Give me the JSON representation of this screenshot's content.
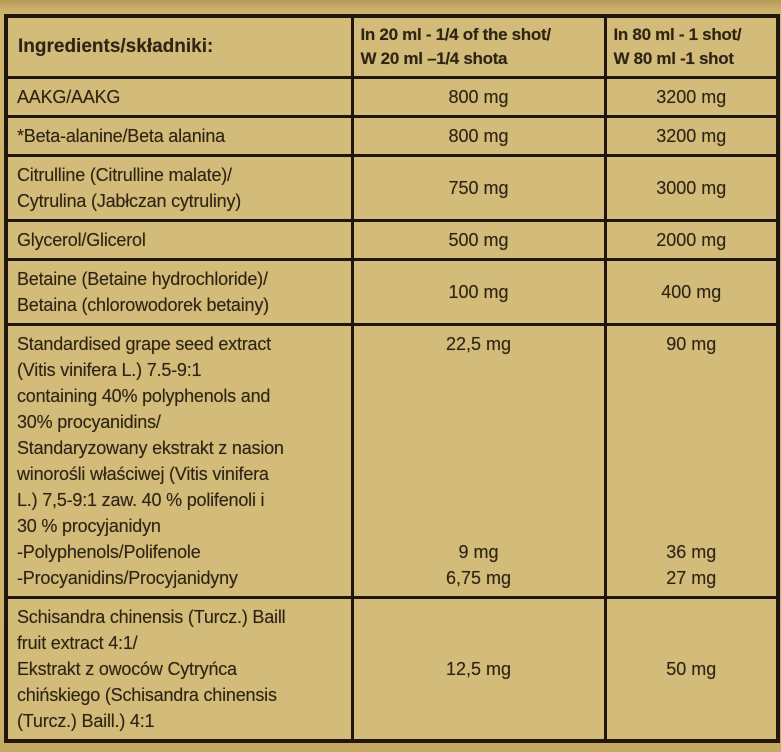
{
  "colors": {
    "page_bg": "#c9ae69",
    "cell_bg": "#d3bc7a",
    "border": "#20160b",
    "text": "#2f2414"
  },
  "table": {
    "header": {
      "ingredients": "Ingredients/składniki:",
      "col20_lines": [
        "In 20 ml - 1/4 of the shot/",
        "W 20 ml –1/4 shota"
      ],
      "col80_lines": [
        "In 80 ml - 1 shot/",
        "W 80 ml -1 shot"
      ]
    },
    "rows": [
      {
        "ingredient_lines": [
          "AAKG/AAKG"
        ],
        "v20": {
          "main": "800 mg",
          "sub": []
        },
        "v80": {
          "main": "3200 mg",
          "sub": []
        }
      },
      {
        "ingredient_lines": [
          "*Beta-alanine/Beta alanina"
        ],
        "v20": {
          "main": "800 mg",
          "sub": []
        },
        "v80": {
          "main": "3200 mg",
          "sub": []
        }
      },
      {
        "ingredient_lines": [
          "Citrulline (Citrulline malate)/",
          "Cytrulina (Jabłczan cytruliny)"
        ],
        "v20": {
          "main": "750 mg",
          "sub": []
        },
        "v80": {
          "main": "3000 mg",
          "sub": []
        }
      },
      {
        "ingredient_lines": [
          "Glycerol/Glicerol"
        ],
        "v20": {
          "main": "500 mg",
          "sub": []
        },
        "v80": {
          "main": "2000 mg",
          "sub": []
        }
      },
      {
        "ingredient_lines": [
          "Betaine (Betaine hydrochloride)/",
          "Betaina (chlorowodorek betainy)"
        ],
        "v20": {
          "main": "100 mg",
          "sub": []
        },
        "v80": {
          "main": "400 mg",
          "sub": []
        }
      },
      {
        "ingredient_lines": [
          "Standardised grape seed extract",
          "(Vitis vinifera L.) 7.5-9:1",
          "containing 40% polyphenols and",
          "30% procyanidins/",
          "Standaryzowany ekstrakt z nasion",
          "winorośli właściwej (Vitis vinifera",
          "L.) 7,5-9:1 zaw. 40 % polifenoli i",
          "30 % procyjanidyn",
          "-Polyphenols/Polifenole",
          "-Procyanidins/Procyjanidyny"
        ],
        "v20": {
          "main": "22,5 mg",
          "sub": [
            "9 mg",
            "6,75 mg"
          ]
        },
        "v80": {
          "main": "90 mg",
          "sub": [
            "36 mg",
            "27 mg"
          ]
        }
      },
      {
        "ingredient_lines": [
          "Schisandra chinensis (Turcz.) Baill",
          "fruit extract 4:1/",
          "Ekstrakt z owoców Cytryńca",
          "chińskiego (Schisandra chinensis",
          "(Turcz.) Baill.) 4:1"
        ],
        "v20": {
          "main": "12,5 mg",
          "sub": []
        },
        "v80": {
          "main": "50 mg",
          "sub": []
        }
      }
    ]
  }
}
